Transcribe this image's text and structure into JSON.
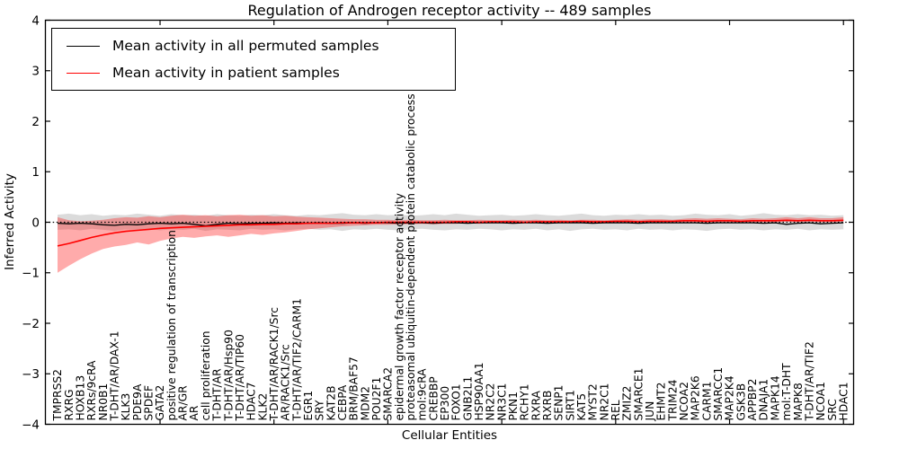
{
  "chart_data": {
    "type": "line",
    "title": "Regulation of Androgen receptor activity -- 489 samples",
    "xlabel": "Cellular Entities",
    "ylabel": "Inferred Activity",
    "ylim": [
      -4,
      4
    ],
    "yticks": [
      -4,
      -3,
      -2,
      -1,
      0,
      1,
      2,
      3,
      4
    ],
    "xtick_positions": [
      9,
      19,
      29,
      39,
      49,
      59,
      69
    ],
    "grid": false,
    "legend_position": "upper left",
    "zero_line": {
      "style": "dotted",
      "color": "#000000",
      "y": 0
    },
    "categories": [
      "TMPRSS2",
      "RXRG",
      "HOXB13",
      "RXRs/9cRA",
      "NR0B1",
      "T-DHT/AR/DAX-1",
      "KLK3",
      "PDE9A",
      "SPDEF",
      "GATA2",
      "positive regulation of transcription",
      "AR/GR",
      "AR",
      "cell proliferation",
      "T-DHT/AR",
      "T-DHT/AR/Hsp90",
      "T-DHT/AR/TIP60",
      "HDAC7",
      "KLK2",
      "T-DHT/AR/RACK1/Src",
      "AR/RACK1/Src",
      "T-DHT/AR/TIF2/CARM1",
      "EGR1",
      "SRY",
      "KAT2B",
      "CEBPA",
      "BRM/BAF57",
      "MDM2",
      "POU2F1",
      "SMARCA2",
      "epidermal growth factor receptor activity",
      "proteasomal ubiquitin-dependent protein catabolic process",
      "mol:9cRA",
      "CREBBP",
      "EP300",
      "FOXO1",
      "GNB2L1",
      "HSP90AA1",
      "NR2C2",
      "NR3C1",
      "PKN1",
      "RCHY1",
      "RXRA",
      "RXRB",
      "SENP1",
      "SIRT1",
      "KAT5",
      "MYST2",
      "NR2C1",
      "REL",
      "ZMIZ2",
      "SMARCE1",
      "JUN",
      "EHMT2",
      "TRIM24",
      "NCOA2",
      "MAP2K6",
      "CARM1",
      "SMARCC1",
      "MAP2K4",
      "GSK3B",
      "APPBP2",
      "DNAJA1",
      "MAPK14",
      "mol:T-DHT",
      "MAPK8",
      "T-DHT/AR/TIF2",
      "NCOA1",
      "SRC",
      "HDAC1"
    ],
    "series": [
      {
        "name": "Mean activity in all permuted samples",
        "color": "#000000",
        "width": 1.3,
        "values": [
          -0.02,
          -0.03,
          -0.02,
          -0.03,
          -0.05,
          -0.06,
          -0.04,
          -0.05,
          -0.03,
          -0.02,
          -0.03,
          -0.02,
          -0.04,
          -0.07,
          -0.04,
          -0.02,
          -0.03,
          -0.02,
          -0.02,
          -0.01,
          -0.02,
          -0.01,
          -0.02,
          -0.01,
          -0.02,
          -0.02,
          -0.01,
          -0.02,
          -0.01,
          -0.01,
          -0.02,
          -0.01,
          -0.01,
          -0.02,
          -0.01,
          -0.01,
          -0.02,
          -0.01,
          -0.01,
          -0.01,
          -0.02,
          -0.01,
          -0.01,
          -0.02,
          -0.01,
          -0.01,
          -0.01,
          -0.02,
          -0.01,
          -0.01,
          -0.01,
          -0.02,
          -0.01,
          -0.01,
          -0.01,
          -0.01,
          -0.01,
          -0.02,
          -0.01,
          -0.01,
          -0.01,
          -0.01,
          -0.02,
          -0.01,
          -0.04,
          -0.02,
          -0.01,
          -0.03,
          -0.02,
          -0.01
        ]
      },
      {
        "name": "Mean activity in patient samples",
        "color": "#ff0000",
        "width": 1.6,
        "values": [
          -0.47,
          -0.42,
          -0.36,
          -0.3,
          -0.25,
          -0.21,
          -0.18,
          -0.16,
          -0.14,
          -0.12,
          -0.11,
          -0.1,
          -0.09,
          -0.08,
          -0.07,
          -0.06,
          -0.05,
          -0.05,
          -0.04,
          -0.04,
          -0.03,
          -0.03,
          -0.02,
          -0.02,
          -0.02,
          -0.01,
          -0.01,
          -0.01,
          -0.01,
          0.0,
          0.0,
          0.0,
          0.0,
          0.0,
          0.0,
          0.01,
          0.01,
          0.0,
          0.01,
          0.01,
          0.01,
          0.0,
          0.01,
          0.01,
          0.01,
          0.01,
          0.02,
          0.01,
          0.01,
          0.02,
          0.02,
          0.01,
          0.02,
          0.02,
          0.02,
          0.03,
          0.03,
          0.02,
          0.03,
          0.03,
          0.02,
          0.03,
          0.03,
          0.03,
          0.04,
          0.03,
          0.04,
          0.03,
          0.03,
          0.04
        ]
      }
    ],
    "bands": [
      {
        "name": "permuted-range",
        "color": "rgba(0,0,0,0.14)",
        "upper": [
          0.15,
          0.17,
          0.14,
          0.16,
          0.13,
          0.15,
          0.14,
          0.17,
          0.15,
          0.13,
          0.16,
          0.14,
          0.15,
          0.13,
          0.16,
          0.14,
          0.13,
          0.15,
          0.14,
          0.16,
          0.14,
          0.13,
          0.15,
          0.14,
          0.16,
          0.18,
          0.15,
          0.14,
          0.16,
          0.14,
          0.15,
          0.13,
          0.14,
          0.16,
          0.14,
          0.17,
          0.15,
          0.13,
          0.14,
          0.15,
          0.13,
          0.14,
          0.16,
          0.14,
          0.13,
          0.15,
          0.17,
          0.14,
          0.13,
          0.15,
          0.14,
          0.16,
          0.14,
          0.15,
          0.13,
          0.14,
          0.17,
          0.15,
          0.14,
          0.16,
          0.13,
          0.15,
          0.18,
          0.15,
          0.14,
          0.16,
          0.14,
          0.15,
          0.13,
          0.14
        ],
        "lower": [
          -0.15,
          -0.14,
          -0.16,
          -0.13,
          -0.15,
          -0.17,
          -0.14,
          -0.15,
          -0.13,
          -0.16,
          -0.14,
          -0.15,
          -0.13,
          -0.17,
          -0.14,
          -0.15,
          -0.16,
          -0.13,
          -0.15,
          -0.14,
          -0.16,
          -0.14,
          -0.13,
          -0.15,
          -0.14,
          -0.17,
          -0.14,
          -0.15,
          -0.13,
          -0.15,
          -0.16,
          -0.14,
          -0.13,
          -0.15,
          -0.16,
          -0.14,
          -0.15,
          -0.13,
          -0.14,
          -0.16,
          -0.14,
          -0.15,
          -0.13,
          -0.16,
          -0.14,
          -0.17,
          -0.14,
          -0.13,
          -0.15,
          -0.14,
          -0.16,
          -0.13,
          -0.15,
          -0.14,
          -0.16,
          -0.14,
          -0.15,
          -0.17,
          -0.14,
          -0.13,
          -0.15,
          -0.14,
          -0.16,
          -0.14,
          -0.15,
          -0.13,
          -0.16,
          -0.14,
          -0.15,
          -0.14
        ]
      },
      {
        "name": "patient-range",
        "color": "rgba(255,0,0,0.33)",
        "upper": [
          0.1,
          0.04,
          0.02,
          0.03,
          0.05,
          0.08,
          0.1,
          0.09,
          0.12,
          0.1,
          0.13,
          0.15,
          0.13,
          0.14,
          0.12,
          0.14,
          0.15,
          0.13,
          0.14,
          0.12,
          0.13,
          0.11,
          0.1,
          0.09,
          0.08,
          0.07,
          0.06,
          0.06,
          0.05,
          0.05,
          0.04,
          0.05,
          0.04,
          0.04,
          0.05,
          0.04,
          0.04,
          0.05,
          0.04,
          0.04,
          0.05,
          0.04,
          0.05,
          0.04,
          0.05,
          0.04,
          0.05,
          0.05,
          0.04,
          0.05,
          0.06,
          0.05,
          0.06,
          0.06,
          0.05,
          0.07,
          0.08,
          0.07,
          0.08,
          0.07,
          0.06,
          0.08,
          0.07,
          0.08,
          0.1,
          0.08,
          0.1,
          0.08,
          0.08,
          0.1
        ],
        "lower": [
          -1.0,
          -0.86,
          -0.73,
          -0.62,
          -0.53,
          -0.48,
          -0.45,
          -0.4,
          -0.44,
          -0.37,
          -0.32,
          -0.29,
          -0.31,
          -0.28,
          -0.26,
          -0.29,
          -0.26,
          -0.23,
          -0.25,
          -0.22,
          -0.2,
          -0.17,
          -0.14,
          -0.12,
          -0.1,
          -0.08,
          -0.07,
          -0.06,
          -0.05,
          -0.05,
          -0.04,
          -0.04,
          -0.03,
          -0.04,
          -0.03,
          -0.03,
          -0.02,
          -0.03,
          -0.02,
          -0.02,
          -0.03,
          -0.02,
          -0.02,
          -0.02,
          -0.01,
          -0.02,
          -0.01,
          -0.01,
          -0.02,
          -0.01,
          -0.01,
          -0.01,
          -0.01,
          0.0,
          -0.01,
          0.0,
          0.0,
          -0.01,
          0.0,
          0.0,
          -0.01,
          0.0,
          0.0,
          0.0,
          0.01,
          0.0,
          0.01,
          0.0,
          0.0,
          0.01
        ]
      }
    ]
  }
}
